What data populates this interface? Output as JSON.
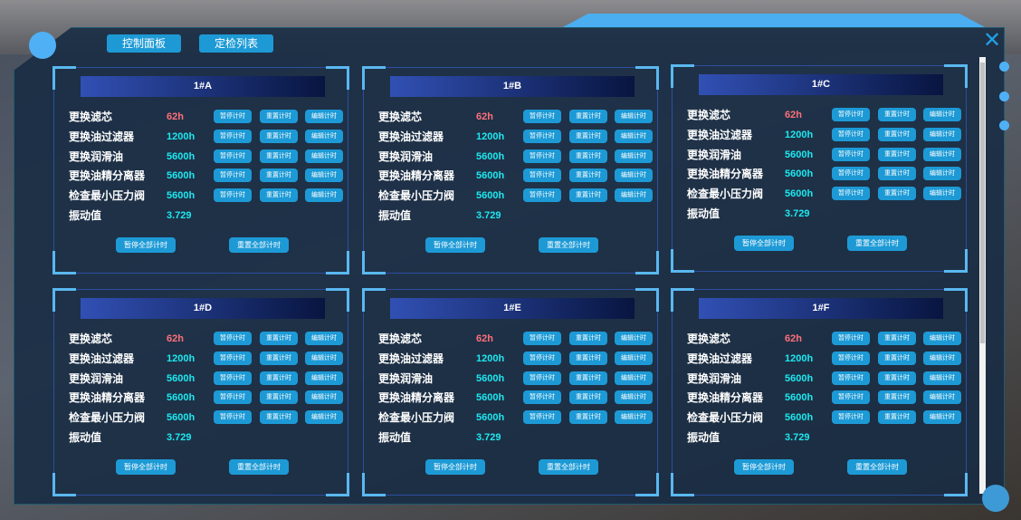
{
  "nav": {
    "control_panel": "控制面板",
    "inspection_list": "定检列表"
  },
  "colors": {
    "accent": "#1d9ad6",
    "warn": "#ff6f7a",
    "ok": "#1de8f0"
  },
  "buttons": {
    "pause": "暂停计时",
    "reset": "重置计时",
    "edit": "编辑计时",
    "pause_all": "暂停全部计时",
    "reset_all": "重置全部计时"
  },
  "cards": [
    {
      "title": "1#A",
      "rows": [
        {
          "label": "更换滤芯",
          "value": "62h",
          "status": "warn"
        },
        {
          "label": "更换油过滤器",
          "value": "1200h",
          "status": "ok"
        },
        {
          "label": "更换润滑油",
          "value": "5600h",
          "status": "ok"
        },
        {
          "label": "更换油精分离器",
          "value": "5600h",
          "status": "ok"
        },
        {
          "label": "检查最小压力阀",
          "value": "5600h",
          "status": "ok"
        }
      ],
      "vibration_label": "振动值",
      "vibration": "3.729"
    },
    {
      "title": "1#B",
      "rows": [
        {
          "label": "更换滤芯",
          "value": "62h",
          "status": "warn"
        },
        {
          "label": "更换油过滤器",
          "value": "1200h",
          "status": "ok"
        },
        {
          "label": "更换润滑油",
          "value": "5600h",
          "status": "ok"
        },
        {
          "label": "更换油精分离器",
          "value": "5600h",
          "status": "ok"
        },
        {
          "label": "检查最小压力阀",
          "value": "5600h",
          "status": "ok"
        }
      ],
      "vibration_label": "振动值",
      "vibration": "3.729"
    },
    {
      "title": "1#C",
      "rows": [
        {
          "label": "更换滤芯",
          "value": "62h",
          "status": "warn"
        },
        {
          "label": "更换油过滤器",
          "value": "1200h",
          "status": "ok"
        },
        {
          "label": "更换润滑油",
          "value": "5600h",
          "status": "ok"
        },
        {
          "label": "更换油精分离器",
          "value": "5600h",
          "status": "ok"
        },
        {
          "label": "检查最小压力阀",
          "value": "5600h",
          "status": "ok"
        }
      ],
      "vibration_label": "振动值",
      "vibration": "3.729"
    },
    {
      "title": "1#D",
      "rows": [
        {
          "label": "更换滤芯",
          "value": "62h",
          "status": "warn"
        },
        {
          "label": "更换油过滤器",
          "value": "1200h",
          "status": "ok"
        },
        {
          "label": "更换润滑油",
          "value": "5600h",
          "status": "ok"
        },
        {
          "label": "更换油精分离器",
          "value": "5600h",
          "status": "ok"
        },
        {
          "label": "检查最小压力阀",
          "value": "5600h",
          "status": "ok"
        }
      ],
      "vibration_label": "振动值",
      "vibration": "3.729"
    },
    {
      "title": "1#E",
      "rows": [
        {
          "label": "更换滤芯",
          "value": "62h",
          "status": "warn"
        },
        {
          "label": "更换油过滤器",
          "value": "1200h",
          "status": "ok"
        },
        {
          "label": "更换润滑油",
          "value": "5600h",
          "status": "ok"
        },
        {
          "label": "更换油精分离器",
          "value": "5600h",
          "status": "ok"
        },
        {
          "label": "检查最小压力阀",
          "value": "5600h",
          "status": "ok"
        }
      ],
      "vibration_label": "振动值",
      "vibration": "3.729"
    },
    {
      "title": "1#F",
      "rows": [
        {
          "label": "更换滤芯",
          "value": "62h",
          "status": "warn"
        },
        {
          "label": "更换油过滤器",
          "value": "1200h",
          "status": "ok"
        },
        {
          "label": "更换润滑油",
          "value": "5600h",
          "status": "ok"
        },
        {
          "label": "更换油精分离器",
          "value": "5600h",
          "status": "ok"
        },
        {
          "label": "检查最小压力阀",
          "value": "5600h",
          "status": "ok"
        }
      ],
      "vibration_label": "振动值",
      "vibration": "3.729"
    }
  ]
}
